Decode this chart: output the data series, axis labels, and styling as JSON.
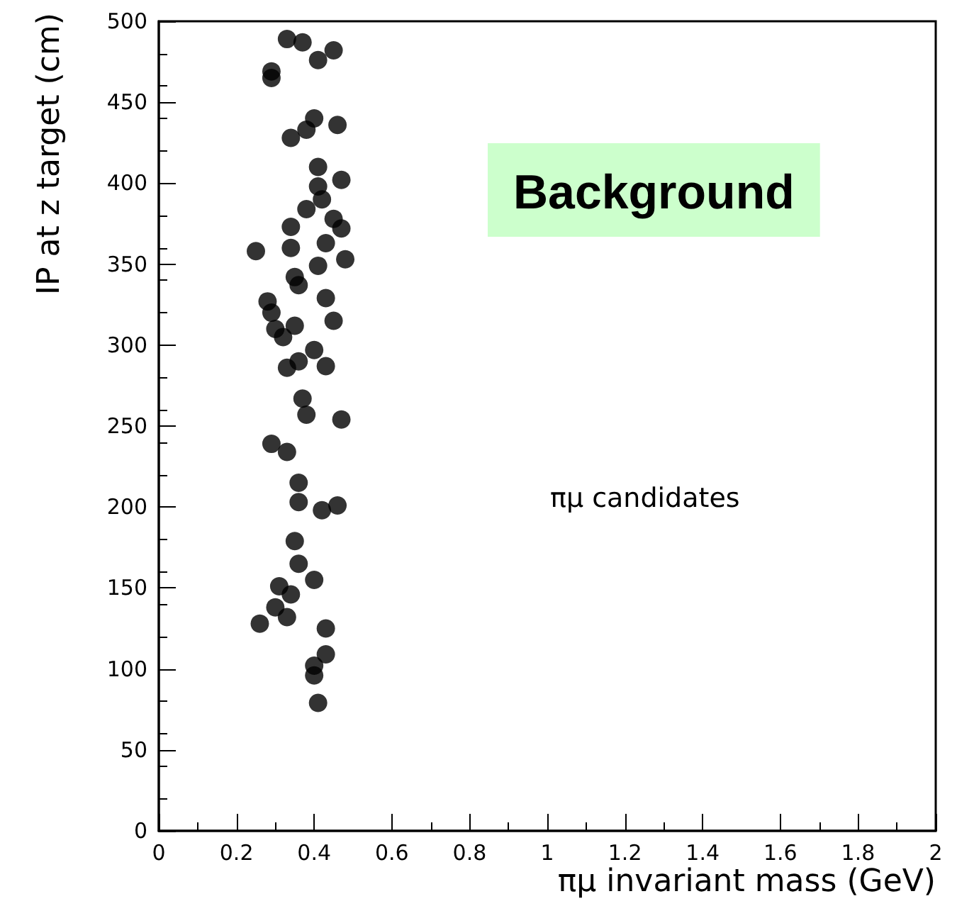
{
  "chart_data": {
    "type": "scatter",
    "xlabel": "πμ invariant mass (GeV)",
    "ylabel": "IP at z target (cm)",
    "annotations": [
      "Background",
      "πμ candidates"
    ],
    "xlim": [
      0,
      2
    ],
    "xticks": [
      0,
      0.2,
      0.4,
      0.6,
      0.8,
      1,
      1.2,
      1.4,
      1.6,
      1.8,
      2
    ],
    "ylim": [
      0,
      500
    ],
    "yticks": [
      0,
      50,
      100,
      150,
      200,
      250,
      300,
      350,
      400,
      450,
      500
    ],
    "marker": "circle",
    "series": [
      {
        "color": "#000000",
        "x": [
          0.33,
          0.37,
          0.45,
          0.41,
          0.29,
          0.29,
          0.4,
          0.38,
          0.34,
          0.46,
          0.41,
          0.47,
          0.41,
          0.42,
          0.38,
          0.45,
          0.47,
          0.34,
          0.25,
          0.34,
          0.43,
          0.48,
          0.41,
          0.35,
          0.36,
          0.43,
          0.28,
          0.29,
          0.45,
          0.35,
          0.3,
          0.32,
          0.4,
          0.36,
          0.33,
          0.43,
          0.37,
          0.38,
          0.47,
          0.29,
          0.33,
          0.36,
          0.36,
          0.42,
          0.46,
          0.35,
          0.36,
          0.4,
          0.31,
          0.34,
          0.3,
          0.33,
          0.26,
          0.43,
          0.43,
          0.4,
          0.4,
          0.41
        ],
        "values": [
          489,
          487,
          482,
          476,
          469,
          465,
          440,
          433,
          428,
          436,
          410,
          402,
          398,
          390,
          384,
          378,
          372,
          373,
          358,
          360,
          363,
          353,
          349,
          342,
          337,
          329,
          327,
          320,
          315,
          312,
          310,
          305,
          297,
          290,
          286,
          287,
          267,
          257,
          254,
          239,
          234,
          215,
          203,
          198,
          201,
          179,
          165,
          155,
          151,
          146,
          138,
          132,
          128,
          125,
          109,
          102,
          96,
          79
        ]
      }
    ]
  }
}
